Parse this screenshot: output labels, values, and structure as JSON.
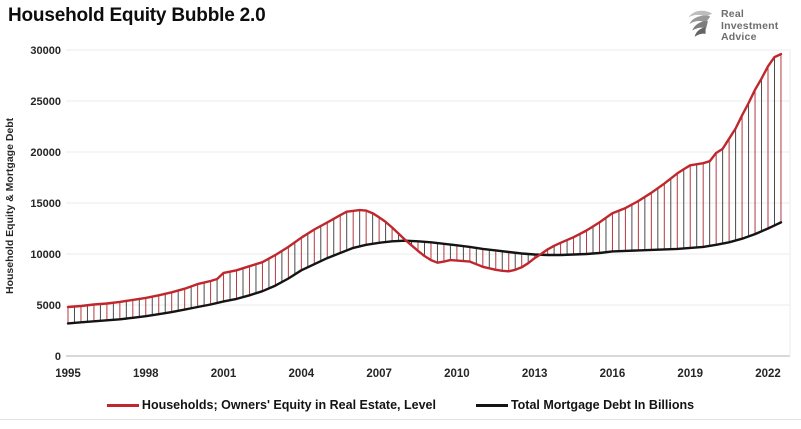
{
  "header": {
    "title": "Household Equity Bubble 2.0"
  },
  "logo": {
    "icon": "eagle-icon",
    "line1": "Real",
    "line2": "Investment",
    "line3": "Advice",
    "text_color": "#6e6e6e"
  },
  "chart_data": {
    "type": "line",
    "title": "Household Equity Bubble 2.0",
    "y_axis_title": "Household Equity & Mortgage Debt",
    "xlabel": "",
    "ylabel": "Household Equity & Mortgage Debt",
    "ylim": [
      0,
      30000
    ],
    "xlim": [
      1995,
      2022.9
    ],
    "y_ticks": [
      0,
      5000,
      10000,
      15000,
      20000,
      25000,
      30000
    ],
    "x_ticks": [
      1995,
      1998,
      2001,
      2004,
      2007,
      2010,
      2013,
      2016,
      2019,
      2022
    ],
    "grid": true,
    "legend_position": "bottom",
    "colors": {
      "grid": "#ebebeb",
      "axis": "#b0b0b0",
      "tick_text": "#262626"
    },
    "drop_lines": {
      "interval_years": 0.25,
      "colors": [
        "#b03a40",
        "#4a4a4a"
      ],
      "width": 1
    },
    "series": [
      {
        "name": "Households; Owners' Equity in Real Estate, Level",
        "color": "#c0272d",
        "width": 2.4,
        "points": [
          [
            1995,
            4800
          ],
          [
            1995.5,
            4900
          ],
          [
            1996,
            5050
          ],
          [
            1996.5,
            5150
          ],
          [
            1997,
            5300
          ],
          [
            1997.5,
            5500
          ],
          [
            1998,
            5700
          ],
          [
            1998.5,
            5950
          ],
          [
            1999,
            6250
          ],
          [
            1999.5,
            6600
          ],
          [
            2000,
            7050
          ],
          [
            2000.5,
            7350
          ],
          [
            2000.75,
            7550
          ],
          [
            2001,
            8150
          ],
          [
            2001.5,
            8400
          ],
          [
            2002,
            8800
          ],
          [
            2002.5,
            9200
          ],
          [
            2003,
            9900
          ],
          [
            2003.5,
            10700
          ],
          [
            2004,
            11600
          ],
          [
            2004.5,
            12400
          ],
          [
            2005,
            13100
          ],
          [
            2005.5,
            13800
          ],
          [
            2005.75,
            14150
          ],
          [
            2006.25,
            14300
          ],
          [
            2006.5,
            14250
          ],
          [
            2006.75,
            14000
          ],
          [
            2007,
            13600
          ],
          [
            2007.25,
            13150
          ],
          [
            2007.5,
            12600
          ],
          [
            2007.75,
            12000
          ],
          [
            2008,
            11400
          ],
          [
            2008.25,
            10850
          ],
          [
            2008.5,
            10300
          ],
          [
            2008.75,
            9800
          ],
          [
            2009,
            9400
          ],
          [
            2009.25,
            9150
          ],
          [
            2009.5,
            9250
          ],
          [
            2009.75,
            9400
          ],
          [
            2010,
            9350
          ],
          [
            2010.5,
            9250
          ],
          [
            2010.75,
            9000
          ],
          [
            2011,
            8750
          ],
          [
            2011.25,
            8600
          ],
          [
            2011.5,
            8450
          ],
          [
            2011.75,
            8350
          ],
          [
            2012,
            8300
          ],
          [
            2012.25,
            8450
          ],
          [
            2012.5,
            8700
          ],
          [
            2012.75,
            9100
          ],
          [
            2013,
            9600
          ],
          [
            2013.25,
            10000
          ],
          [
            2013.5,
            10450
          ],
          [
            2013.75,
            10800
          ],
          [
            2014,
            11100
          ],
          [
            2014.5,
            11650
          ],
          [
            2015,
            12300
          ],
          [
            2015.5,
            13100
          ],
          [
            2016,
            14000
          ],
          [
            2016.5,
            14500
          ],
          [
            2017,
            15200
          ],
          [
            2017.5,
            16000
          ],
          [
            2018,
            16900
          ],
          [
            2018.5,
            17900
          ],
          [
            2018.75,
            18300
          ],
          [
            2019,
            18700
          ],
          [
            2019.5,
            18900
          ],
          [
            2019.75,
            19100
          ],
          [
            2020,
            19900
          ],
          [
            2020.25,
            20300
          ],
          [
            2020.5,
            21300
          ],
          [
            2020.75,
            22300
          ],
          [
            2021,
            23600
          ],
          [
            2021.25,
            24800
          ],
          [
            2021.5,
            26100
          ],
          [
            2021.75,
            27200
          ],
          [
            2022,
            28400
          ],
          [
            2022.25,
            29300
          ],
          [
            2022.5,
            29600
          ]
        ]
      },
      {
        "name": "Total Mortgage Debt In Billions",
        "color": "#141414",
        "width": 2.4,
        "points": [
          [
            1995,
            3200
          ],
          [
            1995.5,
            3300
          ],
          [
            1996,
            3400
          ],
          [
            1996.5,
            3500
          ],
          [
            1997,
            3600
          ],
          [
            1997.5,
            3750
          ],
          [
            1998,
            3900
          ],
          [
            1998.5,
            4100
          ],
          [
            1999,
            4300
          ],
          [
            1999.5,
            4550
          ],
          [
            2000,
            4800
          ],
          [
            2000.5,
            5050
          ],
          [
            2001,
            5350
          ],
          [
            2001.5,
            5600
          ],
          [
            2002,
            5950
          ],
          [
            2002.5,
            6350
          ],
          [
            2003,
            6900
          ],
          [
            2003.5,
            7600
          ],
          [
            2004,
            8400
          ],
          [
            2004.5,
            9000
          ],
          [
            2005,
            9600
          ],
          [
            2005.5,
            10100
          ],
          [
            2006,
            10600
          ],
          [
            2006.5,
            10900
          ],
          [
            2007,
            11100
          ],
          [
            2007.5,
            11250
          ],
          [
            2008,
            11300
          ],
          [
            2008.5,
            11250
          ],
          [
            2009,
            11150
          ],
          [
            2009.5,
            11000
          ],
          [
            2010,
            10850
          ],
          [
            2010.5,
            10700
          ],
          [
            2011,
            10500
          ],
          [
            2011.5,
            10350
          ],
          [
            2012,
            10200
          ],
          [
            2012.5,
            10050
          ],
          [
            2013,
            9950
          ],
          [
            2013.5,
            9900
          ],
          [
            2014,
            9900
          ],
          [
            2014.5,
            9950
          ],
          [
            2015,
            10000
          ],
          [
            2015.5,
            10100
          ],
          [
            2016,
            10250
          ],
          [
            2016.5,
            10300
          ],
          [
            2017,
            10350
          ],
          [
            2017.5,
            10400
          ],
          [
            2018,
            10450
          ],
          [
            2018.5,
            10500
          ],
          [
            2019,
            10600
          ],
          [
            2019.5,
            10700
          ],
          [
            2020,
            10900
          ],
          [
            2020.5,
            11150
          ],
          [
            2021,
            11500
          ],
          [
            2021.5,
            11950
          ],
          [
            2022,
            12500
          ],
          [
            2022.25,
            12800
          ],
          [
            2022.5,
            13100
          ]
        ]
      }
    ]
  }
}
